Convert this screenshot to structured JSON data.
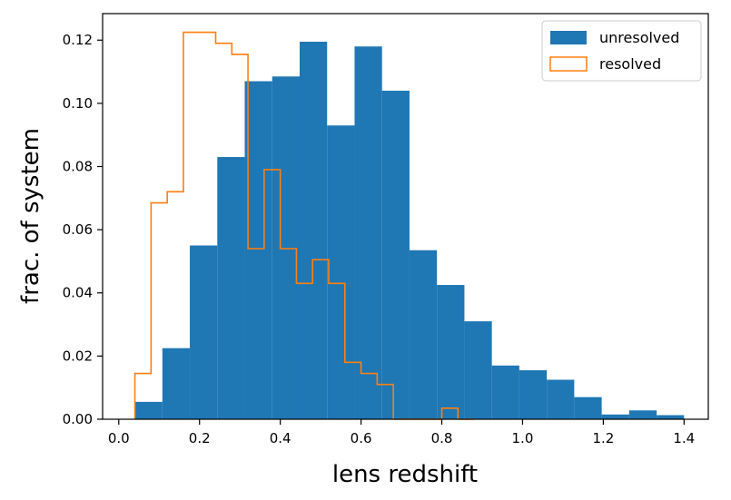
{
  "chart_data": {
    "type": "histogram",
    "title": "",
    "xlabel": "lens redshift",
    "ylabel": "frac. of system",
    "xlim": [
      -0.04,
      1.46
    ],
    "ylim": [
      0.0,
      0.1284
    ],
    "xticks": [
      0.0,
      0.2,
      0.4,
      0.6,
      0.8,
      1.0,
      1.2,
      1.4
    ],
    "xtick_labels": [
      "0.0",
      "0.2",
      "0.4",
      "0.6",
      "0.8",
      "1.0",
      "1.2",
      "1.4"
    ],
    "yticks": [
      0.0,
      0.02,
      0.04,
      0.06,
      0.08,
      0.1,
      0.12
    ],
    "ytick_labels": [
      "0.00",
      "0.02",
      "0.04",
      "0.06",
      "0.08",
      "0.10",
      "0.12"
    ],
    "grid": false,
    "legend_position": "top-right",
    "series": [
      {
        "name": "unresolved",
        "style": "filled",
        "color": "#1f77b4",
        "bin_edges": [
          0.04,
          0.108,
          0.176,
          0.244,
          0.312,
          0.38,
          0.448,
          0.516,
          0.584,
          0.652,
          0.72,
          0.788,
          0.856,
          0.924,
          0.992,
          1.06,
          1.128,
          1.196,
          1.264,
          1.332,
          1.4
        ],
        "values": [
          0.0055,
          0.0225,
          0.055,
          0.083,
          0.107,
          0.1085,
          0.1195,
          0.093,
          0.118,
          0.104,
          0.0535,
          0.0425,
          0.031,
          0.017,
          0.0155,
          0.0125,
          0.007,
          0.0015,
          0.0028,
          0.0013
        ]
      },
      {
        "name": "resolved",
        "style": "step",
        "color": "#ff7f0e",
        "bin_edges": [
          0.04,
          0.08,
          0.12,
          0.16,
          0.2,
          0.24,
          0.28,
          0.32,
          0.36,
          0.4,
          0.44,
          0.48,
          0.52,
          0.56,
          0.6,
          0.64,
          0.68,
          0.72,
          0.76,
          0.8,
          0.84,
          0.88
        ],
        "values": [
          0.0145,
          0.0685,
          0.072,
          0.1225,
          0.1225,
          0.119,
          0.1155,
          0.054,
          0.079,
          0.054,
          0.043,
          0.0505,
          0.043,
          0.018,
          0.0145,
          0.011,
          0.0,
          0.0,
          0.0,
          0.0035,
          0.0
        ]
      }
    ]
  }
}
